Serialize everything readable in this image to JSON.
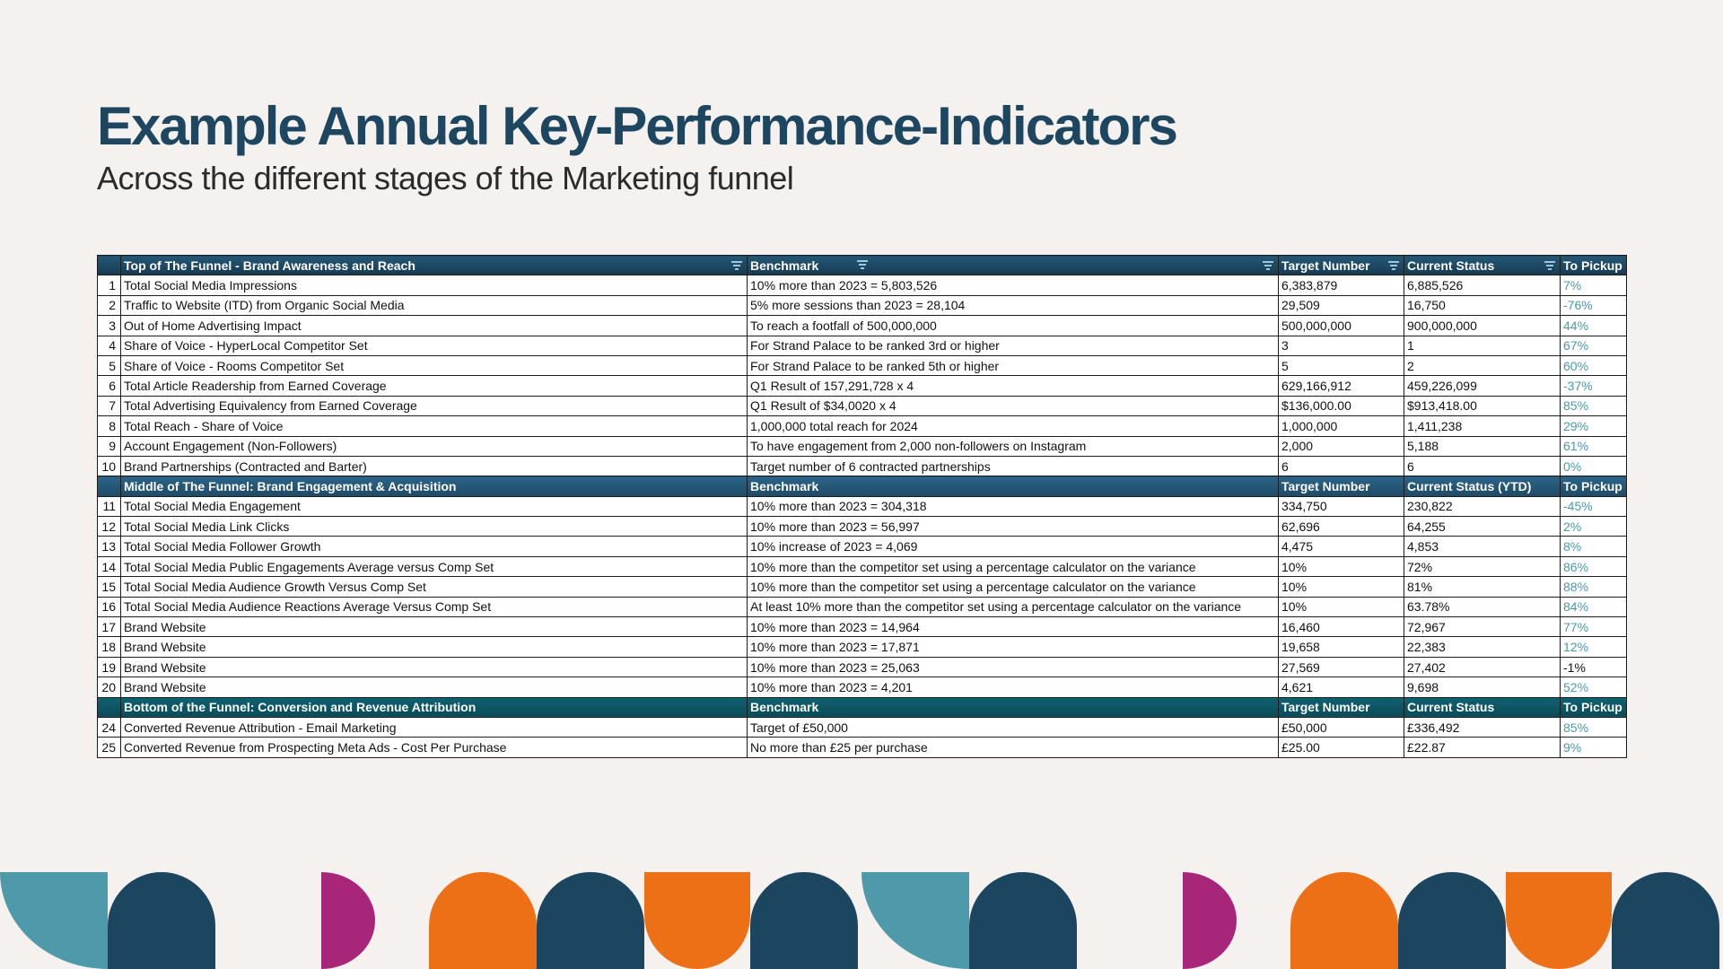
{
  "header": {
    "title": "Example Annual Key-Performance-Indicators",
    "subtitle": "Across the different stages of the Marketing funnel"
  },
  "table": {
    "sections": [
      {
        "headers": [
          "Top of The Funnel - Brand Awareness and Reach",
          "Benchmark",
          "Target Number",
          "Current Status",
          "To Pickup"
        ],
        "rows": [
          {
            "n": "1",
            "kpi": "Total Social Media Impressions",
            "bench": "10% more than 2023 = 5,803,526",
            "target": "6,383,879",
            "status": "6,885,526",
            "pickup": "7%"
          },
          {
            "n": "2",
            "kpi": "Traffic to Website (ITD) from Organic Social Media",
            "bench": "5% more sessions than 2023 = 28,104",
            "target": "29,509",
            "status": "16,750",
            "pickup": "-76%"
          },
          {
            "n": "3",
            "kpi": "Out of Home Advertising Impact",
            "bench": "To reach a footfall of 500,000,000",
            "target": "500,000,000",
            "status": "900,000,000",
            "pickup": "44%"
          },
          {
            "n": "4",
            "kpi": "Share of Voice - HyperLocal Competitor Set",
            "bench": "For Strand Palace to be ranked 3rd or higher",
            "target": "3",
            "status": "1",
            "pickup": "67%"
          },
          {
            "n": "5",
            "kpi": "Share of Voice - Rooms Competitor Set",
            "bench": "For Strand Palace to be ranked 5th or higher",
            "target": "5",
            "status": "2",
            "pickup": "60%"
          },
          {
            "n": "6",
            "kpi": "Total Article Readership from Earned Coverage",
            "bench": "Q1 Result of 157,291,728 x 4",
            "target": "629,166,912",
            "status": "459,226,099",
            "pickup": "-37%"
          },
          {
            "n": "7",
            "kpi": "Total Advertising Equivalency from Earned Coverage",
            "bench": "Q1 Result of $34,0020 x 4",
            "target": "$136,000.00",
            "status": "$913,418.00",
            "pickup": "85%"
          },
          {
            "n": "8",
            "kpi": "Total Reach - Share of Voice",
            "bench": "1,000,000 total reach for 2024",
            "target": "1,000,000",
            "status": "1,411,238",
            "pickup": "29%"
          },
          {
            "n": "9",
            "kpi": "Account Engagement (Non-Followers)",
            "bench": "To have engagement from 2,000 non-followers on Instagram",
            "target": "2,000",
            "status": "5,188",
            "pickup": "61%"
          },
          {
            "n": "10",
            "kpi": "Brand Partnerships (Contracted and Barter)",
            "bench": "Target number of 6 contracted partnerships",
            "target": "6",
            "status": "6",
            "pickup": "0%"
          }
        ]
      },
      {
        "headers": [
          "Middle of The Funnel: Brand Engagement & Acquisition",
          "Benchmark",
          "Target Number",
          "Current Status (YTD)",
          "To Pickup"
        ],
        "rows": [
          {
            "n": "11",
            "kpi": "Total Social Media Engagement",
            "bench": "10% more than 2023 = 304,318",
            "target": "334,750",
            "status": "230,822",
            "pickup": "-45%"
          },
          {
            "n": "12",
            "kpi": "Total Social Media Link Clicks",
            "bench": "10% more than 2023 = 56,997",
            "target": "62,696",
            "status": "64,255",
            "pickup": "2%"
          },
          {
            "n": "13",
            "kpi": "Total Social Media Follower Growth",
            "bench": "10% increase of 2023 = 4,069",
            "target": "4,475",
            "status": "4,853",
            "pickup": "8%"
          },
          {
            "n": "14",
            "kpi": "Total Social Media Public Engagements Average versus Comp Set",
            "bench": "10% more than the competitor set using a percentage calculator on the variance",
            "target": "10%",
            "status": "72%",
            "pickup": "86%"
          },
          {
            "n": "15",
            "kpi": "Total Social Media Audience Growth Versus Comp Set",
            "bench": "10% more than the competitor set using a percentage calculator on the variance",
            "target": "10%",
            "status": "81%",
            "pickup": "88%"
          },
          {
            "n": "16",
            "kpi": "Total Social Media Audience Reactions Average Versus Comp Set",
            "bench": "At least 10% more than the competitor set using a percentage calculator on the variance",
            "target": "10%",
            "status": "63.78%",
            "pickup": "84%"
          },
          {
            "n": "17",
            "kpi": "Brand Website",
            "bench": "10% more than 2023 = 14,964",
            "target": "16,460",
            "status": "72,967",
            "pickup": "77%"
          },
          {
            "n": "18",
            "kpi": "Brand Website",
            "bench": "10% more than 2023 = 17,871",
            "target": "19,658",
            "status": "22,383",
            "pickup": "12%"
          },
          {
            "n": "19",
            "kpi": "Brand Website",
            "bench": "10% more than 2023 = 25,063",
            "target": "27,569",
            "status": "27,402",
            "pickup": "-1%"
          },
          {
            "n": "20",
            "kpi": "Brand Website",
            "bench": "10% more than 2023 = 4,201",
            "target": "4,621",
            "status": "9,698",
            "pickup": "52%"
          }
        ]
      },
      {
        "headers": [
          "Bottom of the Funnel: Conversion and Revenue Attribution",
          "Benchmark",
          "Target Number",
          "Current Status",
          "To Pickup"
        ],
        "rows": [
          {
            "n": "24",
            "kpi": "Converted Revenue Attribution - Email Marketing",
            "bench": "Target of £50,000",
            "target": "£50,000",
            "status": "£336,492",
            "pickup": "85%"
          },
          {
            "n": "25",
            "kpi": "Converted Revenue from Prospecting Meta Ads - Cost Per Purchase",
            "bench": "No more than £25 per purchase",
            "target": "£25.00",
            "status": "£22.87",
            "pickup": "9%"
          }
        ]
      }
    ]
  },
  "colors": {
    "title": "#1d4660",
    "pickup_text": "#4a9aa8",
    "header_top": "#1e4a66",
    "header_bottom": "#0d5766",
    "shape_teal": "#4f9aaa",
    "shape_navy": "#1c4560",
    "shape_magenta": "#a8267a",
    "shape_orange": "#ee7016"
  }
}
